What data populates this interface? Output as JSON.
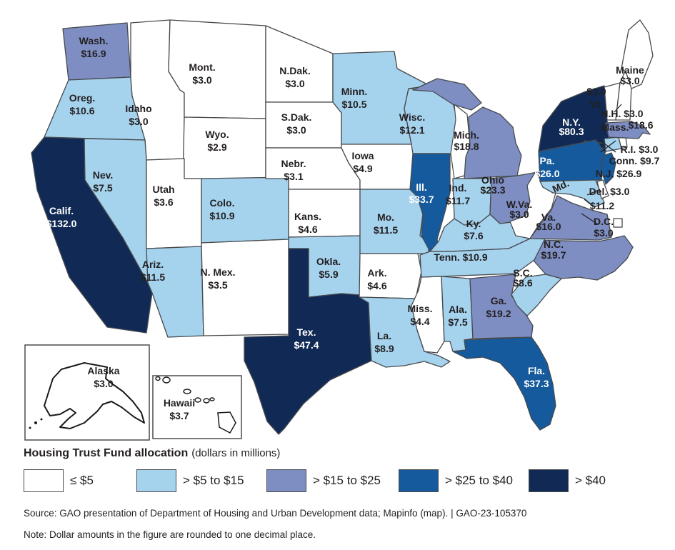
{
  "legend": {
    "title_bold": "Housing Trust Fund allocation",
    "title_note": "(dollars in millions)",
    "items": [
      {
        "label": "≤ $5",
        "color": "#ffffff"
      },
      {
        "label": "> $5 to $15",
        "color": "#a5d2ed"
      },
      {
        "label": "> $15 to $25",
        "color": "#7e8ec2"
      },
      {
        "label": "> $25 to $40",
        "color": "#155a9c"
      },
      {
        "label": "> $40",
        "color": "#112a55"
      }
    ]
  },
  "footer": {
    "source": "Source: GAO presentation of Department of Housing and Urban Development data; Mapinfo (map).  |  GAO-23-105370",
    "note": "Note: Dollar amounts in the figure are rounded to one decimal place."
  },
  "palette": {
    "stroke": "#474a4e",
    "text_dark": "#231f20",
    "text_light": "#ffffff",
    "inset_stroke": "#1a1a1a"
  },
  "chart_data": {
    "type": "choropleth",
    "title": "Housing Trust Fund allocation (dollars in millions)",
    "unit": "dollars in millions",
    "bins": [
      {
        "label": "≤ $5",
        "color": "#ffffff"
      },
      {
        "label": "> $5 to $15",
        "color": "#a5d2ed"
      },
      {
        "label": "> $15 to $25",
        "color": "#7e8ec2"
      },
      {
        "label": "> $25 to $40",
        "color": "#155a9c"
      },
      {
        "label": "> $40",
        "color": "#112a55"
      }
    ],
    "states": [
      {
        "id": "WA",
        "label": "Wash.",
        "value": 16.9,
        "display": "$16.9",
        "bin": 2
      },
      {
        "id": "OR",
        "label": "Oreg.",
        "value": 10.6,
        "display": "$10.6",
        "bin": 1
      },
      {
        "id": "ID",
        "label": "Idaho",
        "value": 3.0,
        "display": "$3.0",
        "bin": 0
      },
      {
        "id": "MT",
        "label": "Mont.",
        "value": 3.0,
        "display": "$3.0",
        "bin": 0
      },
      {
        "id": "WY",
        "label": "Wyo.",
        "value": 2.9,
        "display": "$2.9",
        "bin": 0
      },
      {
        "id": "CA",
        "label": "Calif.",
        "value": 132.0,
        "display": "$132.0",
        "bin": 4
      },
      {
        "id": "NV",
        "label": "Nev.",
        "value": 7.5,
        "display": "$7.5",
        "bin": 1
      },
      {
        "id": "UT",
        "label": "Utah",
        "value": 3.6,
        "display": "$3.6",
        "bin": 0
      },
      {
        "id": "CO",
        "label": "Colo.",
        "value": 10.9,
        "display": "$10.9",
        "bin": 1
      },
      {
        "id": "AZ",
        "label": "Ariz.",
        "value": 11.5,
        "display": "$11.5",
        "bin": 1
      },
      {
        "id": "NM",
        "label": "N. Mex.",
        "value": 3.5,
        "display": "$3.5",
        "bin": 0
      },
      {
        "id": "ND",
        "label": "N.Dak.",
        "value": 3.0,
        "display": "$3.0",
        "bin": 0
      },
      {
        "id": "SD",
        "label": "S.Dak.",
        "value": 3.0,
        "display": "$3.0",
        "bin": 0
      },
      {
        "id": "NE",
        "label": "Nebr.",
        "value": 3.1,
        "display": "$3.1",
        "bin": 0
      },
      {
        "id": "KS",
        "label": "Kans.",
        "value": 4.6,
        "display": "$4.6",
        "bin": 0
      },
      {
        "id": "OK",
        "label": "Okla.",
        "value": 5.9,
        "display": "$5.9",
        "bin": 1
      },
      {
        "id": "TX",
        "label": "Tex.",
        "value": 47.4,
        "display": "$47.4",
        "bin": 4
      },
      {
        "id": "MN",
        "label": "Minn.",
        "value": 10.5,
        "display": "$10.5",
        "bin": 1
      },
      {
        "id": "IA",
        "label": "Iowa",
        "value": 4.9,
        "display": "$4.9",
        "bin": 0
      },
      {
        "id": "MO",
        "label": "Mo.",
        "value": 11.5,
        "display": "$11.5",
        "bin": 1
      },
      {
        "id": "AR",
        "label": "Ark.",
        "value": 4.6,
        "display": "$4.6",
        "bin": 0
      },
      {
        "id": "LA",
        "label": "La.",
        "value": 8.9,
        "display": "$8.9",
        "bin": 1
      },
      {
        "id": "WI",
        "label": "Wisc.",
        "value": 12.1,
        "display": "$12.1",
        "bin": 1
      },
      {
        "id": "IL",
        "label": "Ill.",
        "value": 33.7,
        "display": "$33.7",
        "bin": 3
      },
      {
        "id": "MS",
        "label": "Miss.",
        "value": 4.4,
        "display": "$4.4",
        "bin": 0
      },
      {
        "id": "AL",
        "label": "Ala.",
        "value": 7.5,
        "display": "$7.5",
        "bin": 1
      },
      {
        "id": "GA",
        "label": "Ga.",
        "value": 19.2,
        "display": "$19.2",
        "bin": 2
      },
      {
        "id": "SC",
        "label": "S.C.",
        "value": 8.6,
        "display": "$8.6",
        "bin": 1
      },
      {
        "id": "FL",
        "label": "Fla.",
        "value": 37.3,
        "display": "$37.3",
        "bin": 3
      },
      {
        "id": "NC",
        "label": "N.C.",
        "value": 19.7,
        "display": "$19.7",
        "bin": 2
      },
      {
        "id": "TN",
        "label": "Tenn.",
        "value": 10.9,
        "display": "$10.9",
        "bin": 1
      },
      {
        "id": "KY",
        "label": "Ky.",
        "value": 7.6,
        "display": "$7.6",
        "bin": 1
      },
      {
        "id": "IN",
        "label": "Ind.",
        "value": 11.7,
        "display": "$11.7",
        "bin": 1
      },
      {
        "id": "OH",
        "label": "Ohio",
        "value": 23.3,
        "display": "$23.3",
        "bin": 2
      },
      {
        "id": "WV",
        "label": "W.Va.",
        "value": 3.0,
        "display": "$3.0",
        "bin": 0
      },
      {
        "id": "VA",
        "label": "Va.",
        "value": 16.0,
        "display": "$16.0",
        "bin": 2
      },
      {
        "id": "MI",
        "label": "Mich.",
        "value": 18.8,
        "display": "$18.8",
        "bin": 2
      },
      {
        "id": "NY",
        "label": "N.Y.",
        "value": 80.3,
        "display": "$80.3",
        "bin": 4
      },
      {
        "id": "PA",
        "label": "Pa.",
        "value": 26.0,
        "display": "$26.0",
        "bin": 3
      },
      {
        "id": "MD",
        "label": "Md.",
        "value": 11.2,
        "display": "$11.2",
        "bin": 1
      },
      {
        "id": "DE",
        "label": "Del.",
        "value": 3.0,
        "display": "$3.0",
        "bin": 0
      },
      {
        "id": "NJ",
        "label": "N.J.",
        "value": 26.9,
        "display": "$26.9",
        "bin": 3
      },
      {
        "id": "CT",
        "label": "Conn.",
        "value": 9.7,
        "display": "$9.7",
        "bin": 1
      },
      {
        "id": "RI",
        "label": "R.I.",
        "value": 3.0,
        "display": "$3.0",
        "bin": 0
      },
      {
        "id": "MA",
        "label": "Mass.",
        "value": 18.6,
        "display": "$18.6",
        "bin": 2
      },
      {
        "id": "VT",
        "label": "Vt.",
        "value": 3.0,
        "display": "$3.0",
        "bin": 0
      },
      {
        "id": "NH",
        "label": "N.H.",
        "value": 3.0,
        "display": "$3.0",
        "bin": 0
      },
      {
        "id": "ME",
        "label": "Maine",
        "value": 3.0,
        "display": "$3.0",
        "bin": 0
      },
      {
        "id": "DC",
        "label": "D.C.",
        "value": 3.0,
        "display": "$3.0",
        "bin": 0
      },
      {
        "id": "AK",
        "label": "Alaska",
        "value": 3.0,
        "display": "$3.0",
        "bin": 0
      },
      {
        "id": "HI",
        "label": "Hawaii",
        "value": 3.7,
        "display": "$3.7",
        "bin": 0
      }
    ]
  }
}
